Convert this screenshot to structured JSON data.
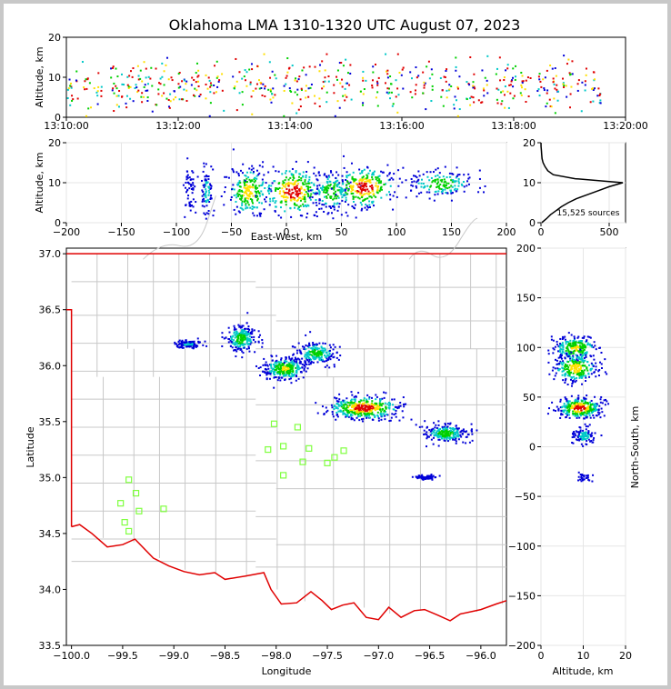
{
  "chart_data": {
    "title": "Oklahoma LMA 1310-1320 UTC August 07, 2023",
    "colors": {
      "density_low": "#0000d8",
      "density_mid": "#00c8c8",
      "density_high": "#00d000",
      "density_higher": "#ffe000",
      "density_peak": "#e00000",
      "border_state": "#e00000",
      "border_county": "#c8c8c8",
      "station_marker": "#80ff40",
      "grid": "#e6e6e6"
    },
    "panels": [
      {
        "id": "time_height",
        "type": "scatter",
        "xlabel": "",
        "ylabel": "Altitude, km",
        "xticks": [
          "13:10:00",
          "13:12:00",
          "13:14:00",
          "13:16:00",
          "13:18:00",
          "13:20:00"
        ],
        "xlim": [
          0,
          10
        ],
        "xunit": "minutes after 13:10:00 UTC",
        "ylim": [
          0,
          20
        ],
        "yticks": [
          0,
          10,
          20
        ],
        "flash_times_min": [
          0.1,
          0.35,
          0.55,
          0.85,
          1.05,
          1.25,
          1.45,
          1.65,
          1.85,
          2.05,
          2.3,
          2.55,
          2.75,
          3.05,
          3.25,
          3.45,
          3.65,
          3.95,
          4.15,
          4.35,
          4.6,
          4.85,
          5.0,
          5.25,
          5.5,
          5.75,
          5.95,
          6.2,
          6.45,
          6.75,
          6.95,
          7.2,
          7.45,
          7.75,
          7.95,
          8.2,
          8.5,
          8.7,
          8.95,
          9.2,
          9.45
        ]
      },
      {
        "id": "east_west_height",
        "type": "heatmap",
        "xlabel": "East-West, km",
        "ylabel": "Altitude, km",
        "xlim": [
          -200,
          200
        ],
        "xticks": [
          -200,
          -150,
          -100,
          -50,
          0,
          50,
          100,
          150,
          200
        ],
        "ylim": [
          0,
          20
        ],
        "yticks": [
          0,
          10,
          20
        ],
        "clusters_km": [
          {
            "x": -88,
            "z": 8,
            "sx": 3,
            "sz": 3,
            "w": 0.2
          },
          {
            "x": -73,
            "z": 8,
            "sx": 3,
            "sz": 3,
            "w": 0.3
          },
          {
            "x": -35,
            "z": 8,
            "sx": 9,
            "sz": 3,
            "w": 0.8
          },
          {
            "x": 5,
            "z": 8,
            "sx": 13,
            "sz": 3,
            "w": 1.0
          },
          {
            "x": 40,
            "z": 8,
            "sx": 8,
            "sz": 2.5,
            "w": 0.6
          },
          {
            "x": 70,
            "z": 9,
            "sx": 14,
            "sz": 2.5,
            "w": 1.0
          },
          {
            "x": 140,
            "z": 10,
            "sx": 14,
            "sz": 1.6,
            "w": 0.6
          }
        ]
      },
      {
        "id": "altitude_histogram",
        "type": "line",
        "xlabel": "",
        "ylabel": "",
        "xlim": [
          0,
          620
        ],
        "xticks": [
          0,
          500
        ],
        "ylim": [
          0,
          20
        ],
        "yticks": [
          0,
          10,
          20
        ],
        "annotation": "15,525 sources",
        "altitude_km": [
          0,
          1,
          2,
          3,
          4,
          5,
          6,
          7,
          8,
          9,
          10,
          11,
          12,
          13,
          14,
          15,
          16,
          17,
          18,
          19,
          20
        ],
        "source_counts": [
          5,
          40,
          70,
          110,
          150,
          200,
          260,
          340,
          420,
          500,
          600,
          250,
          90,
          50,
          30,
          15,
          8,
          5,
          3,
          1,
          0
        ]
      },
      {
        "id": "plan_view",
        "type": "heatmap",
        "xlabel": "Longitude",
        "ylabel": "Latitude",
        "xlim": [
          -100.05,
          -95.75
        ],
        "xticks": [
          -100.0,
          -99.5,
          -99.0,
          -98.5,
          -98.0,
          -97.5,
          -97.0,
          -96.5,
          -96.0
        ],
        "ylim": [
          33.5,
          37.05
        ],
        "yticks": [
          33.5,
          34.0,
          34.5,
          35.0,
          35.5,
          36.0,
          36.5,
          37.0
        ],
        "clusters_deg": [
          {
            "lon": -98.87,
            "lat": 36.2,
            "slon": 0.07,
            "slat": 0.02,
            "w": 0.25
          },
          {
            "lon": -98.35,
            "lat": 36.25,
            "slon": 0.07,
            "slat": 0.06,
            "w": 0.55
          },
          {
            "lon": -97.92,
            "lat": 35.98,
            "slon": 0.1,
            "slat": 0.05,
            "w": 0.7
          },
          {
            "lon": -97.62,
            "lat": 36.12,
            "slon": 0.1,
            "slat": 0.05,
            "w": 0.5
          },
          {
            "lon": -97.15,
            "lat": 35.63,
            "slon": 0.17,
            "slat": 0.05,
            "w": 1.0
          },
          {
            "lon": -96.35,
            "lat": 35.4,
            "slon": 0.1,
            "slat": 0.04,
            "w": 0.55
          },
          {
            "lon": -96.55,
            "lat": 35.01,
            "slon": 0.05,
            "slat": 0.01,
            "w": 0.15
          }
        ],
        "stations": [
          {
            "lon": -98.02,
            "lat": 35.48
          },
          {
            "lon": -97.79,
            "lat": 35.45
          },
          {
            "lon": -98.08,
            "lat": 35.25
          },
          {
            "lon": -97.93,
            "lat": 35.28
          },
          {
            "lon": -97.68,
            "lat": 35.26
          },
          {
            "lon": -97.34,
            "lat": 35.24
          },
          {
            "lon": -97.74,
            "lat": 35.14
          },
          {
            "lon": -97.5,
            "lat": 35.13
          },
          {
            "lon": -97.43,
            "lat": 35.18
          },
          {
            "lon": -97.93,
            "lat": 35.02
          },
          {
            "lon": -99.44,
            "lat": 34.98
          },
          {
            "lon": -99.37,
            "lat": 34.86
          },
          {
            "lon": -99.52,
            "lat": 34.77
          },
          {
            "lon": -99.34,
            "lat": 34.7
          },
          {
            "lon": -99.1,
            "lat": 34.72
          },
          {
            "lon": -99.48,
            "lat": 34.6
          },
          {
            "lon": -99.44,
            "lat": 34.52
          }
        ],
        "state_border": {
          "north_lat": 37.0,
          "panhandle_east_lon": -100.0,
          "panhandle_corner_lat": 36.5,
          "red_river": [
            [
              -100.0,
              34.56
            ],
            [
              -99.92,
              34.58
            ],
            [
              -99.8,
              34.5
            ],
            [
              -99.65,
              34.38
            ],
            [
              -99.5,
              34.4
            ],
            [
              -99.38,
              34.45
            ],
            [
              -99.2,
              34.28
            ],
            [
              -99.05,
              34.21
            ],
            [
              -98.9,
              34.16
            ],
            [
              -98.75,
              34.13
            ],
            [
              -98.6,
              34.15
            ],
            [
              -98.5,
              34.09
            ],
            [
              -98.3,
              34.12
            ],
            [
              -98.12,
              34.15
            ],
            [
              -98.05,
              34.0
            ],
            [
              -97.95,
              33.87
            ],
            [
              -97.8,
              33.88
            ],
            [
              -97.66,
              33.98
            ],
            [
              -97.55,
              33.9
            ],
            [
              -97.46,
              33.82
            ],
            [
              -97.35,
              33.86
            ],
            [
              -97.24,
              33.88
            ],
            [
              -97.12,
              33.75
            ],
            [
              -97.0,
              33.73
            ],
            [
              -96.9,
              33.84
            ],
            [
              -96.78,
              33.75
            ],
            [
              -96.65,
              33.81
            ],
            [
              -96.55,
              33.82
            ],
            [
              -96.42,
              33.77
            ],
            [
              -96.3,
              33.72
            ],
            [
              -96.2,
              33.78
            ],
            [
              -96.0,
              33.82
            ],
            [
              -95.85,
              33.87
            ],
            [
              -95.75,
              33.9
            ]
          ]
        }
      },
      {
        "id": "altitude_north_south",
        "type": "heatmap",
        "xlabel": "Altitude, km",
        "ylabel": "North-South, km",
        "xlim": [
          0,
          20
        ],
        "xticks": [
          0,
          10,
          20
        ],
        "ylim": [
          -200,
          200
        ],
        "yticks": [
          -200,
          -150,
          -100,
          -50,
          0,
          50,
          100,
          150,
          200
        ],
        "clusters_km": [
          {
            "z": 8,
            "y": 100,
            "sz": 2.5,
            "sy": 6,
            "w": 0.7
          },
          {
            "z": 8,
            "y": 80,
            "sz": 2.5,
            "sy": 7,
            "w": 0.8
          },
          {
            "z": 9,
            "y": 40,
            "sz": 2.5,
            "sy": 5,
            "w": 1.0
          },
          {
            "z": 10,
            "y": 12,
            "sz": 1.3,
            "sy": 5,
            "w": 0.3
          },
          {
            "z": 10,
            "y": -30,
            "sz": 1.0,
            "sy": 2,
            "w": 0.1
          }
        ]
      }
    ]
  }
}
